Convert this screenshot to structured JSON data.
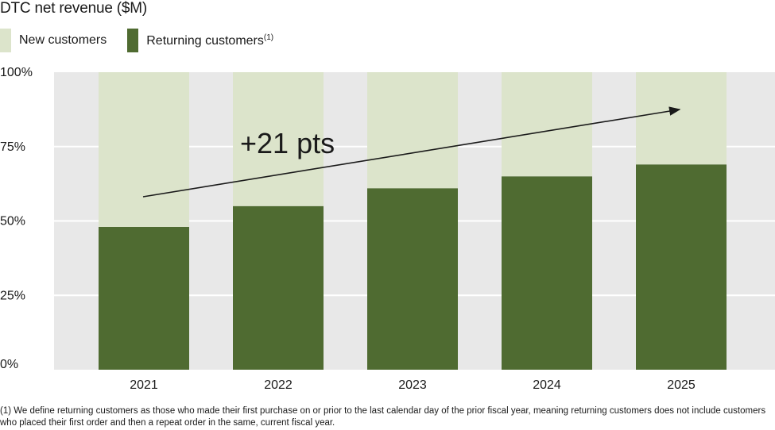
{
  "title": "DTC net revenue ($M)",
  "legend": [
    {
      "label": "New customers",
      "note": "",
      "color": "#dce4cb"
    },
    {
      "label": "Returning customers",
      "note": "(1)",
      "color": "#4f6b31"
    }
  ],
  "chart_data": {
    "type": "bar",
    "stacked": true,
    "categories": [
      "2021",
      "2022",
      "2023",
      "2024",
      "2025"
    ],
    "series": [
      {
        "name": "Returning customers",
        "values": [
          48,
          55,
          61,
          65,
          69
        ],
        "color": "#4f6b31"
      },
      {
        "name": "New customers",
        "values": [
          52,
          45,
          39,
          35,
          31
        ],
        "color": "#dce4cb"
      }
    ],
    "y_ticks": [
      "0%",
      "25%",
      "50%",
      "75%",
      "100%"
    ],
    "ylim": [
      0,
      100
    ],
    "grid": true,
    "legend_position": "top-left",
    "annotation": "+21 pts"
  },
  "footnote": "(1) We define returning customers as those who made their first purchase on or prior to the last calendar day of the prior fiscal year, meaning returning customers does not include customers who placed their first order and then a repeat order in the same, current fiscal year."
}
